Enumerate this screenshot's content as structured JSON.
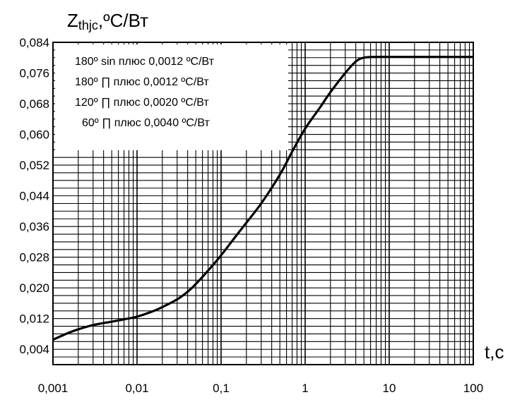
{
  "chart_data": {
    "type": "line",
    "title": "",
    "ylabel_main": "Z",
    "ylabel_sub": "thjc",
    "ylabel_unit": ",ºC/Вт",
    "xlabel": "t,c",
    "xscale": "log",
    "xlim": [
      0.001,
      100
    ],
    "ylim": [
      0,
      0.084
    ],
    "x_ticks": [
      "0,001",
      "0,01",
      "0,1",
      "1",
      "10",
      "100"
    ],
    "y_ticks": [
      "0,004",
      "0,012",
      "0,020",
      "0,028",
      "0,036",
      "0,044",
      "0,052",
      "0,060",
      "0,068",
      "0,076",
      "0,084"
    ],
    "grid": true,
    "legend_position": "top-left",
    "legend": [
      {
        "label": "180º sin плюс 0,0012 ºC/Вт"
      },
      {
        "label": "180º ∏ плюс 0,0012 ºC/Вт"
      },
      {
        "label": "120º ∏ плюс 0,0020 ºC/Вт"
      },
      {
        "label": "60º ∏ плюс 0,0040 ºC/Вт"
      }
    ],
    "series": [
      {
        "x": [
          0.001,
          0.0015,
          0.002,
          0.003,
          0.005,
          0.007,
          0.01,
          0.015,
          0.02,
          0.03,
          0.04,
          0.05,
          0.07,
          0.1,
          0.15,
          0.2,
          0.3,
          0.5,
          0.7,
          1,
          1.5,
          2,
          3,
          4,
          5,
          7,
          10,
          20,
          50,
          100
        ],
        "y": [
          0.0065,
          0.0082,
          0.0092,
          0.0103,
          0.0112,
          0.0118,
          0.0125,
          0.0138,
          0.015,
          0.017,
          0.019,
          0.021,
          0.0245,
          0.0285,
          0.0335,
          0.037,
          0.042,
          0.0495,
          0.0555,
          0.0615,
          0.067,
          0.071,
          0.076,
          0.079,
          0.08,
          0.0802,
          0.0802,
          0.0802,
          0.0802,
          0.0802
        ]
      }
    ]
  }
}
